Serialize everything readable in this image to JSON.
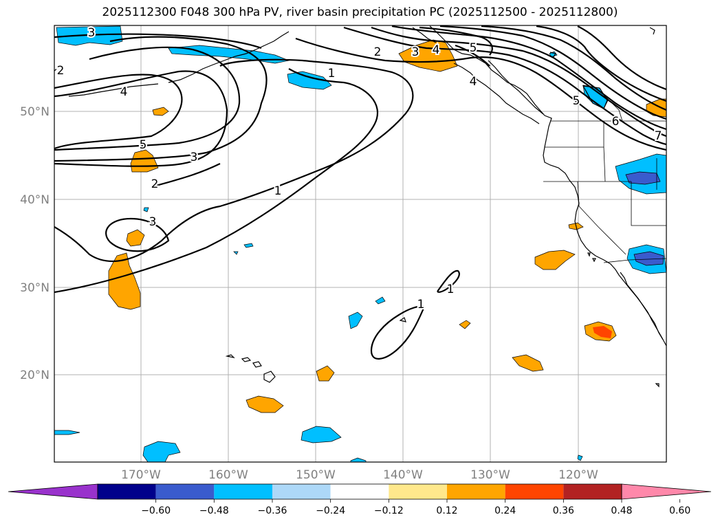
{
  "title": "2025112300 F048 300 hPa PV, river basin precipitation PC (2025112500 - 2025112800)",
  "lat_labels": [
    "50°N",
    "40°N",
    "30°N",
    "20°N"
  ],
  "lon_labels": [
    "170°W",
    "160°W",
    "150°W",
    "140°W",
    "130°W",
    "120°W"
  ],
  "colorbar": {
    "ticks": [
      "−0.60",
      "−0.48",
      "−0.36",
      "−0.24",
      "−0.12",
      "0.12",
      "0.24",
      "0.36",
      "0.48",
      "0.60"
    ],
    "colors": [
      "#9932cc",
      "#00008b",
      "#3a5bcd",
      "#00bfff",
      "#add8f8",
      "#ffffff",
      "#ffe88c",
      "#ffa500",
      "#ff4500",
      "#b22222",
      "#ff88aa"
    ]
  },
  "contour_labels": [
    "3",
    "2",
    "4",
    "5",
    "3",
    "2",
    "3",
    "1",
    "2",
    "3",
    "4",
    "5",
    "1",
    "4",
    "5",
    "6",
    "7",
    "1",
    "1"
  ]
}
